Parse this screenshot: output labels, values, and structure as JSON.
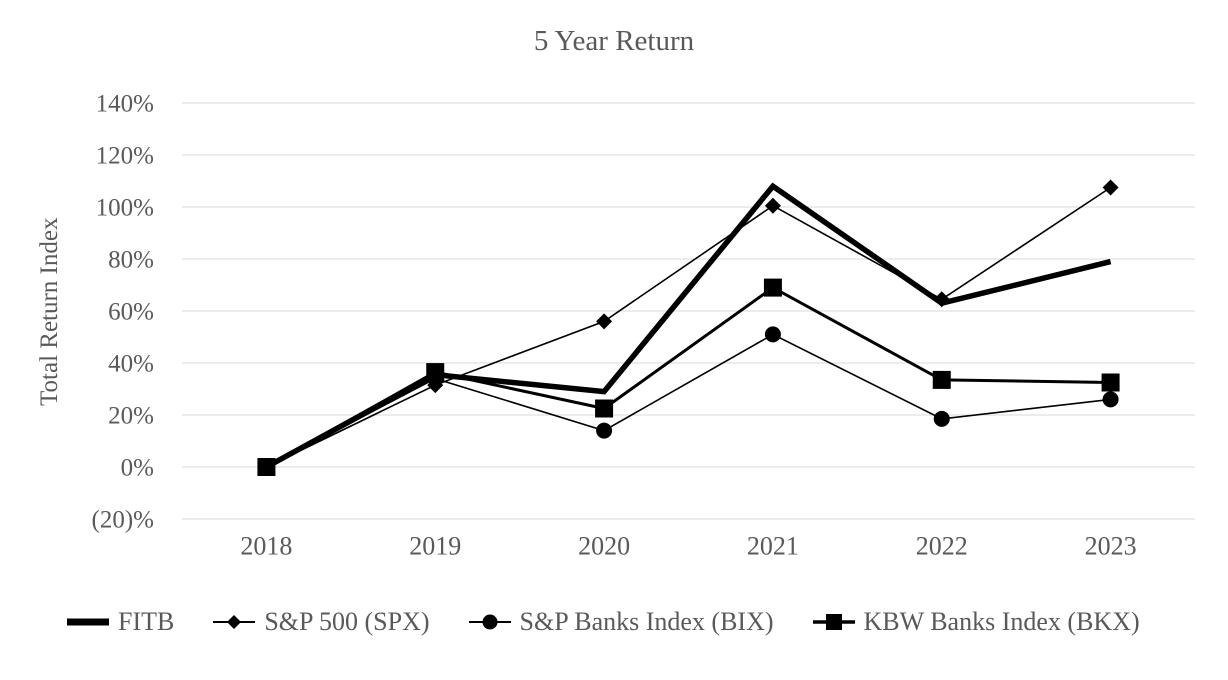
{
  "chart_data": {
    "type": "line",
    "title": "5 Year Return",
    "ylabel": "Total Return Index",
    "value_unit": "percent",
    "x_categories": [
      "2018",
      "2019",
      "2020",
      "2021",
      "2022",
      "2023"
    ],
    "y_ticks": [
      {
        "label": "140%",
        "value": 140
      },
      {
        "label": "120%",
        "value": 120
      },
      {
        "label": "100%",
        "value": 100
      },
      {
        "label": "80%",
        "value": 80
      },
      {
        "label": "60%",
        "value": 60
      },
      {
        "label": "40%",
        "value": 40
      },
      {
        "label": "20%",
        "value": 20
      },
      {
        "label": "0%",
        "value": 0
      },
      {
        "label": "(20)%",
        "value": -20
      }
    ],
    "ylim": [
      -20,
      140
    ],
    "grid": "horizontal",
    "legend_position": "bottom",
    "colors": {
      "series": "#000000",
      "text": "#595959",
      "gridline": "#d9d9d9",
      "background": "#ffffff"
    },
    "series": [
      {
        "key": "fitb",
        "name": "FITB",
        "marker": "none",
        "line_width": 5.5,
        "values": [
          0,
          35.5,
          29,
          108,
          63,
          79
        ]
      },
      {
        "key": "spx",
        "name": "S&P 500 (SPX)",
        "marker": "diamond",
        "line_width": 1.6,
        "values": [
          0,
          31.5,
          56,
          100.5,
          64.5,
          107.5
        ]
      },
      {
        "key": "bix",
        "name": "S&P Banks Index (BIX)",
        "marker": "circle",
        "line_width": 1.6,
        "values": [
          0,
          34,
          14,
          51,
          18.5,
          26
        ]
      },
      {
        "key": "bkx",
        "name": "KBW Banks Index (BKX)",
        "marker": "square",
        "line_width": 3,
        "values": [
          0,
          36.5,
          22.5,
          69,
          33.5,
          32.5
        ]
      }
    ]
  }
}
